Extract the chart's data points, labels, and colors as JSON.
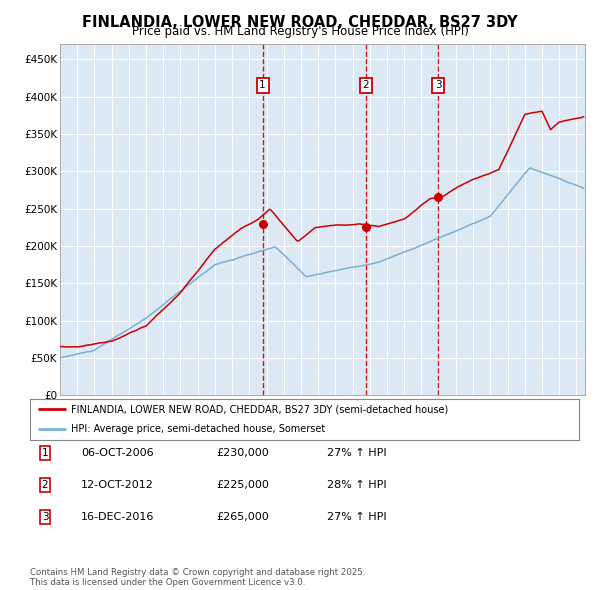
{
  "title": "FINLANDIA, LOWER NEW ROAD, CHEDDAR, BS27 3DY",
  "subtitle": "Price paid vs. HM Land Registry's House Price Index (HPI)",
  "title_fontsize": 10.5,
  "subtitle_fontsize": 8.5,
  "background_color": "#dce9f5",
  "fig_bg_color": "#ffffff",
  "red_line_color": "#cc0000",
  "blue_line_color": "#7bafd4",
  "grid_color": "#ffffff",
  "vline_color": "#cc0000",
  "annotation_box_color": "#cc0000",
  "ylim": [
    0,
    470000
  ],
  "yticks": [
    0,
    50000,
    100000,
    150000,
    200000,
    250000,
    300000,
    350000,
    400000,
    450000
  ],
  "ytick_labels": [
    "£0",
    "£50K",
    "£100K",
    "£150K",
    "£200K",
    "£250K",
    "£300K",
    "£350K",
    "£400K",
    "£450K"
  ],
  "legend_red": "FINLANDIA, LOWER NEW ROAD, CHEDDAR, BS27 3DY (semi-detached house)",
  "legend_blue": "HPI: Average price, semi-detached house, Somerset",
  "sale1_label": "1",
  "sale1_date": "06-OCT-2006",
  "sale1_price": 230000,
  "sale1_hpi": "27% ↑ HPI",
  "sale1_x": 2006.77,
  "sale2_label": "2",
  "sale2_date": "12-OCT-2012",
  "sale2_price": 225000,
  "sale2_hpi": "28% ↑ HPI",
  "sale2_x": 2012.78,
  "sale3_label": "3",
  "sale3_date": "16-DEC-2016",
  "sale3_price": 265000,
  "sale3_hpi": "27% ↑ HPI",
  "sale3_x": 2016.96,
  "footer": "Contains HM Land Registry data © Crown copyright and database right 2025.\nThis data is licensed under the Open Government Licence v3.0."
}
